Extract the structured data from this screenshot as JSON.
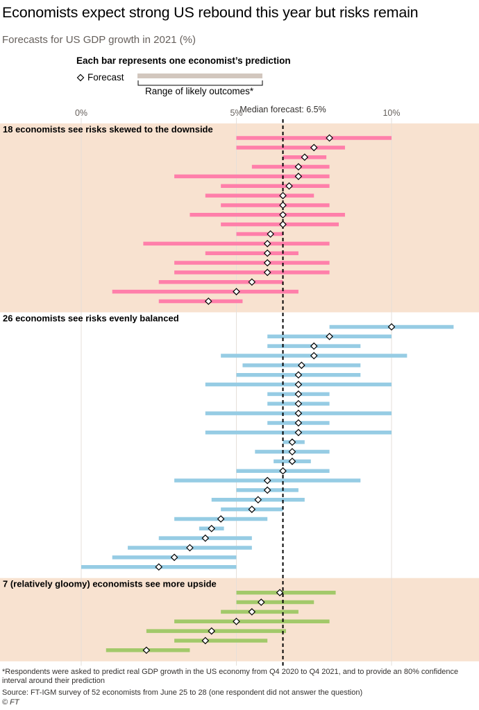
{
  "title": "Economists expect strong US rebound this year but risks remain",
  "subtitle": "Forecasts for US GDP growth in 2021 (%)",
  "legend": {
    "heading": "Each bar represents one economist’s prediction",
    "forecast_label": "Forecast",
    "range_label": "Range of likely outcomes*"
  },
  "footer": {
    "note": "*Respondents were asked to predict real GDP growth in the US economy from Q4 2020 to Q4 2021, and to provide an 80% confidence interval around their prediction",
    "source": "Source: FT-IGM survey of 52 economists from June 25 to 28 (one respondent did not answer the question)",
    "credit": "© FT"
  },
  "chart_data": {
    "type": "range-dot",
    "xlim": [
      0,
      12
    ],
    "x_ticks": [
      {
        "value": 0,
        "label": "0%"
      },
      {
        "value": 5,
        "label": "5%"
      },
      {
        "value": 10,
        "label": "10%"
      }
    ],
    "median": {
      "value": 6.5,
      "label": "Median forecast: 6.5%"
    },
    "colors": {
      "downside": "#ff7faa",
      "balanced": "#96cce4",
      "upside": "#a2c96a",
      "band": "#f8e2d0",
      "legend_bar": "#d2c7be",
      "grid": "#e6dfd9"
    },
    "groups": [
      {
        "key": "downside",
        "label": "18 economists see risks skewed to the downside",
        "banded": true,
        "rows": [
          {
            "low": 5.0,
            "high": 10.0,
            "forecast": 8.0
          },
          {
            "low": 5.0,
            "high": 8.5,
            "forecast": 7.5
          },
          {
            "low": 6.5,
            "high": 7.9,
            "forecast": 7.2
          },
          {
            "low": 5.5,
            "high": 8.0,
            "forecast": 7.0
          },
          {
            "low": 3.0,
            "high": 8.0,
            "forecast": 7.0
          },
          {
            "low": 4.5,
            "high": 8.0,
            "forecast": 6.7
          },
          {
            "low": 4.0,
            "high": 7.5,
            "forecast": 6.5
          },
          {
            "low": 4.5,
            "high": 8.0,
            "forecast": 6.5
          },
          {
            "low": 3.5,
            "high": 8.5,
            "forecast": 6.5
          },
          {
            "low": 4.5,
            "high": 8.3,
            "forecast": 6.5
          },
          {
            "low": 5.0,
            "high": 6.5,
            "forecast": 6.1
          },
          {
            "low": 2.0,
            "high": 8.0,
            "forecast": 6.0
          },
          {
            "low": 4.0,
            "high": 7.0,
            "forecast": 6.0
          },
          {
            "low": 3.0,
            "high": 8.0,
            "forecast": 6.0
          },
          {
            "low": 3.0,
            "high": 8.0,
            "forecast": 6.0
          },
          {
            "low": 2.5,
            "high": 6.5,
            "forecast": 5.5
          },
          {
            "low": 1.0,
            "high": 7.0,
            "forecast": 5.0
          },
          {
            "low": 2.5,
            "high": 5.2,
            "forecast": 4.1
          }
        ]
      },
      {
        "key": "balanced",
        "label": "26 economists see risks evenly balanced",
        "banded": false,
        "rows": [
          {
            "low": 8.0,
            "high": 12.0,
            "forecast": 10.0
          },
          {
            "low": 6.0,
            "high": 10.0,
            "forecast": 8.0
          },
          {
            "low": 6.0,
            "high": 9.0,
            "forecast": 7.5
          },
          {
            "low": 4.5,
            "high": 10.5,
            "forecast": 7.5
          },
          {
            "low": 5.2,
            "high": 9.0,
            "forecast": 7.1
          },
          {
            "low": 5.0,
            "high": 9.0,
            "forecast": 7.0
          },
          {
            "low": 4.0,
            "high": 10.0,
            "forecast": 7.0
          },
          {
            "low": 6.0,
            "high": 8.0,
            "forecast": 7.0
          },
          {
            "low": 6.0,
            "high": 8.0,
            "forecast": 7.0
          },
          {
            "low": 4.0,
            "high": 10.0,
            "forecast": 7.0
          },
          {
            "low": 6.0,
            "high": 8.0,
            "forecast": 7.0
          },
          {
            "low": 4.0,
            "high": 10.0,
            "forecast": 7.0
          },
          {
            "low": 6.5,
            "high": 7.2,
            "forecast": 6.8
          },
          {
            "low": 5.6,
            "high": 8.0,
            "forecast": 6.8
          },
          {
            "low": 6.2,
            "high": 7.4,
            "forecast": 6.8
          },
          {
            "low": 5.0,
            "high": 8.0,
            "forecast": 6.5
          },
          {
            "low": 3.0,
            "high": 9.0,
            "forecast": 6.0
          },
          {
            "low": 5.0,
            "high": 7.0,
            "forecast": 6.0
          },
          {
            "low": 4.2,
            "high": 7.2,
            "forecast": 5.7
          },
          {
            "low": 4.5,
            "high": 6.5,
            "forecast": 5.5
          },
          {
            "low": 3.0,
            "high": 6.0,
            "forecast": 4.5
          },
          {
            "low": 3.8,
            "high": 4.6,
            "forecast": 4.2
          },
          {
            "low": 2.5,
            "high": 5.5,
            "forecast": 4.0
          },
          {
            "low": 1.5,
            "high": 5.5,
            "forecast": 3.5
          },
          {
            "low": 1.0,
            "high": 5.0,
            "forecast": 3.0
          },
          {
            "low": 0.0,
            "high": 5.0,
            "forecast": 2.5
          }
        ]
      },
      {
        "key": "upside",
        "label": "7 (relatively gloomy) economists see more upside",
        "banded": true,
        "rows": [
          {
            "low": 5.0,
            "high": 8.2,
            "forecast": 6.4
          },
          {
            "low": 5.0,
            "high": 7.5,
            "forecast": 5.8
          },
          {
            "low": 4.5,
            "high": 7.0,
            "forecast": 5.5
          },
          {
            "low": 3.0,
            "high": 8.0,
            "forecast": 5.0
          },
          {
            "low": 2.1,
            "high": 6.6,
            "forecast": 4.2
          },
          {
            "low": 3.0,
            "high": 6.0,
            "forecast": 4.0
          },
          {
            "low": 0.8,
            "high": 3.5,
            "forecast": 2.1
          }
        ]
      }
    ]
  }
}
